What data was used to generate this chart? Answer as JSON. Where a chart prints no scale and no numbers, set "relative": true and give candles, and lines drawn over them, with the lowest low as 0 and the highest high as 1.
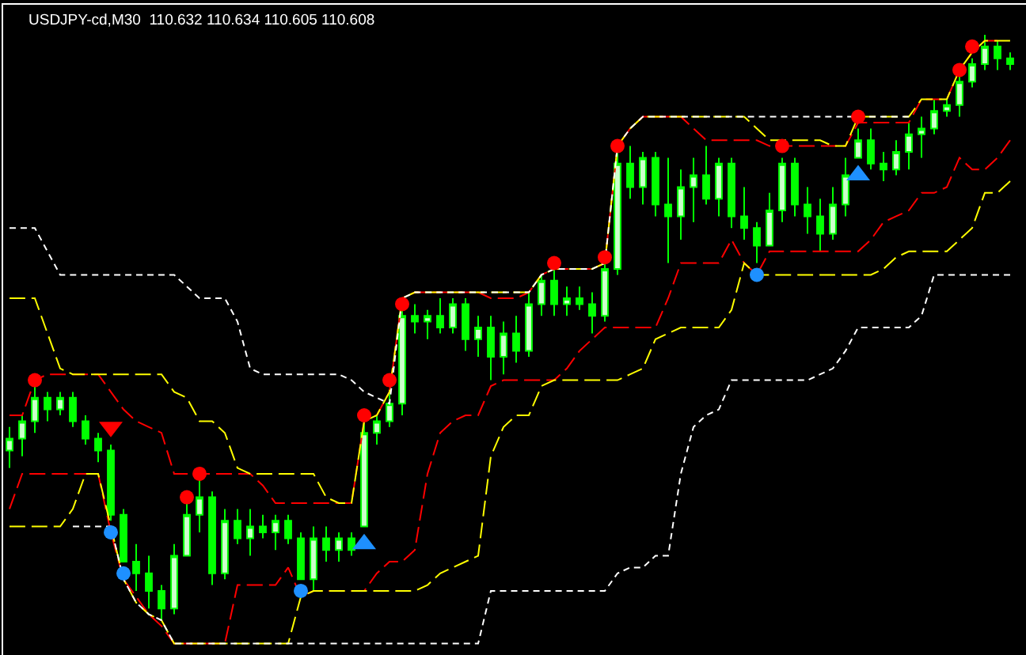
{
  "chart_data": {
    "type": "candlestick",
    "title": "USDJPY-cd,M30  110.632 110.634 110.605 110.608",
    "relative": true,
    "categories": [
      null,
      null,
      null,
      null,
      null,
      null,
      null,
      null,
      null,
      null,
      null,
      null,
      null,
      null,
      null,
      null,
      null,
      null,
      null,
      null,
      null,
      null,
      null,
      null,
      null,
      null,
      null,
      null,
      null,
      null,
      null,
      null,
      null,
      null,
      null,
      null,
      null,
      null,
      null,
      null,
      null,
      null,
      null,
      null,
      null,
      null,
      null,
      null,
      null,
      null,
      null,
      null,
      null,
      null,
      null,
      null,
      null,
      null,
      null,
      null,
      null,
      null,
      null,
      null,
      null,
      null,
      null,
      null,
      null,
      null,
      null,
      null,
      null,
      null,
      null,
      null,
      null,
      null,
      null,
      null
    ],
    "series": [
      {
        "type": "line",
        "color": "#ff0000",
        "line_style": "dashed",
        "values": [
          0.35,
          0.35,
          0.41,
          0.42,
          0.42,
          0.42,
          0.42,
          0.42,
          0.39,
          0.36,
          0.34,
          0.33,
          0.32,
          0.25,
          0.25,
          0.25,
          0.25,
          0.25,
          0.25,
          0.25,
          0.23,
          0.2,
          0.2,
          0.2,
          0.2,
          0.2,
          0.2,
          0.2,
          0.34,
          0.35,
          0.39,
          0.55,
          0.56,
          0.56,
          0.56,
          0.56,
          0.56,
          0.56,
          0.55,
          0.55,
          0.55,
          0.56,
          0.59,
          0.6,
          0.6,
          0.6,
          0.6,
          0.61,
          0.81,
          0.84,
          0.86,
          0.86,
          0.86,
          0.86,
          0.84,
          0.82,
          0.82,
          0.82,
          0.82,
          0.82,
          0.81,
          0.81,
          0.81,
          0.81,
          0.81,
          0.81,
          0.81,
          0.85,
          0.85,
          0.85,
          0.85,
          0.85,
          0.89,
          0.89,
          0.89,
          0.94,
          0.97,
          0.99,
          0.99,
          null
        ]
      },
      {
        "type": "line",
        "color": "#ff0000",
        "line_style": "dashed",
        "values": [
          0.19,
          0.25,
          0.25,
          0.25,
          0.25,
          0.25,
          0.25,
          0.25,
          0.15,
          0.07,
          0.04,
          0.01,
          -0.01,
          -0.04,
          -0.04,
          -0.04,
          -0.04,
          -0.04,
          0.06,
          0.06,
          0.06,
          0.06,
          0.09,
          0.04,
          0.05,
          0.05,
          0.05,
          0.05,
          0.05,
          0.08,
          0.1,
          0.1,
          0.12,
          0.25,
          0.32,
          0.34,
          0.35,
          0.35,
          0.4,
          0.41,
          0.41,
          0.41,
          0.41,
          0.41,
          0.43,
          0.46,
          0.48,
          0.5,
          0.5,
          0.5,
          0.5,
          0.5,
          0.55,
          0.61,
          0.61,
          0.61,
          0.61,
          0.65,
          0.61,
          0.59,
          0.63,
          0.63,
          0.63,
          0.63,
          0.63,
          0.63,
          0.63,
          0.63,
          0.65,
          0.68,
          0.69,
          0.7,
          0.73,
          0.73,
          0.74,
          0.79,
          0.77,
          0.77,
          0.79,
          0.82
        ]
      },
      {
        "type": "line",
        "color": "#ffff00",
        "line_style": "dashed",
        "values": [
          0.55,
          0.55,
          0.55,
          0.49,
          0.43,
          0.42,
          0.42,
          0.42,
          0.42,
          0.42,
          0.42,
          0.42,
          0.42,
          0.39,
          0.38,
          0.34,
          0.34,
          0.32,
          0.26,
          0.25,
          0.25,
          0.25,
          0.25,
          0.25,
          0.25,
          0.21,
          0.2,
          0.2,
          0.34,
          0.35,
          0.39,
          0.55,
          0.56,
          0.56,
          0.56,
          0.56,
          0.56,
          0.56,
          0.56,
          0.56,
          0.56,
          0.56,
          0.59,
          0.6,
          0.6,
          0.6,
          0.6,
          0.61,
          0.81,
          0.84,
          0.86,
          0.86,
          0.86,
          0.86,
          0.86,
          0.86,
          0.86,
          0.86,
          0.86,
          0.84,
          0.82,
          0.82,
          0.82,
          0.82,
          0.82,
          0.81,
          0.81,
          0.86,
          0.86,
          0.86,
          0.86,
          0.86,
          0.89,
          0.89,
          0.89,
          0.94,
          0.97,
          0.99,
          0.99,
          0.99
        ]
      },
      {
        "type": "line",
        "color": "#ffff00",
        "line_style": "dashed",
        "values": [
          0.16,
          0.16,
          0.16,
          0.16,
          0.16,
          0.19,
          0.25,
          0.25,
          0.16,
          0.07,
          0.03,
          0.01,
          0.0,
          -0.04,
          -0.04,
          -0.04,
          -0.04,
          -0.04,
          -0.04,
          -0.04,
          -0.04,
          -0.04,
          -0.04,
          0.04,
          0.05,
          0.05,
          0.05,
          0.05,
          0.05,
          0.05,
          0.05,
          0.05,
          0.05,
          0.06,
          0.08,
          0.09,
          0.1,
          0.11,
          0.28,
          0.33,
          0.35,
          0.35,
          0.4,
          0.41,
          0.41,
          0.41,
          0.41,
          0.41,
          0.41,
          0.42,
          0.43,
          0.48,
          0.49,
          0.5,
          0.5,
          0.5,
          0.5,
          0.53,
          0.61,
          0.59,
          0.59,
          0.59,
          0.59,
          0.59,
          0.59,
          0.59,
          0.59,
          0.59,
          0.59,
          0.6,
          0.62,
          0.63,
          0.63,
          0.63,
          0.63,
          0.65,
          0.67,
          0.73,
          0.73,
          0.75
        ]
      },
      {
        "type": "line",
        "color": "#ffffff",
        "line_style": "dotted",
        "values": [
          0.67,
          0.67,
          0.67,
          0.63,
          0.59,
          0.59,
          0.59,
          0.59,
          0.59,
          0.59,
          0.59,
          0.59,
          0.59,
          0.59,
          0.57,
          0.55,
          0.55,
          0.55,
          0.51,
          0.43,
          0.42,
          0.42,
          0.42,
          0.42,
          0.42,
          0.42,
          0.42,
          0.41,
          0.39,
          0.38,
          0.37,
          0.55,
          0.56,
          0.56,
          0.56,
          0.56,
          0.56,
          0.56,
          0.56,
          0.56,
          0.56,
          0.56,
          0.59,
          0.6,
          0.6,
          0.6,
          0.6,
          0.61,
          0.81,
          0.84,
          0.86,
          0.86,
          0.86,
          0.86,
          0.86,
          0.86,
          0.86,
          0.86,
          0.86,
          0.86,
          0.86,
          0.86,
          0.86,
          0.86,
          0.86,
          0.86,
          0.86,
          0.86,
          0.86,
          0.86,
          0.86,
          0.86,
          null,
          null,
          null,
          null,
          null,
          null,
          null,
          null
        ]
      },
      {
        "type": "line",
        "color": "#ffffff",
        "line_style": "dotted",
        "values": [
          null,
          null,
          null,
          null,
          null,
          0.16,
          0.16,
          0.16,
          0.16,
          0.07,
          0.03,
          0.01,
          0.0,
          -0.04,
          -0.04,
          -0.04,
          -0.04,
          -0.04,
          -0.04,
          -0.04,
          -0.04,
          -0.04,
          -0.04,
          -0.04,
          -0.04,
          -0.04,
          -0.04,
          -0.04,
          -0.04,
          -0.04,
          -0.04,
          -0.04,
          -0.04,
          -0.04,
          -0.04,
          -0.04,
          -0.04,
          -0.04,
          0.05,
          0.05,
          0.05,
          0.05,
          0.05,
          0.05,
          0.05,
          0.05,
          0.05,
          0.05,
          0.08,
          0.09,
          0.09,
          0.11,
          0.11,
          0.25,
          0.33,
          0.35,
          0.36,
          0.41,
          0.41,
          0.41,
          0.41,
          0.41,
          0.41,
          0.41,
          0.42,
          0.43,
          0.46,
          0.5,
          0.5,
          0.5,
          0.5,
          0.5,
          0.52,
          0.59,
          0.59,
          0.59,
          0.59,
          0.59,
          0.59,
          0.59
        ]
      },
      {
        "type": "scatter",
        "color": "#ff0000",
        "marker": "circle",
        "values": [
          null,
          null,
          0.41,
          null,
          null,
          null,
          null,
          null,
          null,
          null,
          null,
          null,
          null,
          null,
          0.21,
          0.25,
          null,
          null,
          null,
          null,
          null,
          null,
          null,
          null,
          null,
          null,
          null,
          null,
          0.35,
          null,
          0.41,
          0.54,
          null,
          null,
          null,
          null,
          null,
          null,
          null,
          null,
          null,
          null,
          null,
          0.61,
          null,
          null,
          null,
          0.62,
          0.81,
          null,
          null,
          null,
          null,
          null,
          null,
          null,
          null,
          null,
          null,
          null,
          null,
          0.81,
          null,
          null,
          null,
          null,
          null,
          0.86,
          null,
          null,
          null,
          null,
          null,
          null,
          null,
          0.94,
          0.98,
          null,
          null,
          null
        ]
      },
      {
        "type": "scatter",
        "color": "#1e90ff",
        "marker": "circle",
        "values": [
          null,
          null,
          null,
          null,
          null,
          null,
          null,
          null,
          0.15,
          0.08,
          null,
          null,
          null,
          null,
          null,
          null,
          null,
          null,
          null,
          null,
          null,
          null,
          null,
          0.05,
          null,
          null,
          null,
          null,
          null,
          null,
          null,
          null,
          null,
          null,
          null,
          null,
          null,
          null,
          null,
          null,
          null,
          null,
          null,
          null,
          null,
          null,
          null,
          null,
          null,
          null,
          null,
          null,
          null,
          null,
          null,
          null,
          null,
          null,
          null,
          0.59,
          null,
          null,
          null,
          null,
          null,
          null,
          null,
          null,
          null,
          null,
          null,
          null,
          null,
          null,
          null,
          null,
          null,
          null,
          null,
          null
        ]
      },
      {
        "type": "scatter",
        "color": "#ff0000",
        "marker": "triangle",
        "values": [
          null,
          null,
          null,
          null,
          null,
          null,
          null,
          null,
          0.33,
          null,
          null,
          null,
          null,
          null,
          null,
          null,
          null,
          null,
          null,
          null,
          null,
          null,
          null,
          null,
          null,
          null,
          null,
          null,
          null,
          null,
          null,
          null,
          null,
          null,
          null,
          null,
          null,
          null,
          null,
          null,
          null,
          null,
          null,
          null,
          null,
          null,
          null,
          null,
          null,
          null,
          null,
          null,
          null,
          null,
          null,
          null,
          null,
          null,
          null,
          null,
          null,
          null,
          null,
          null,
          null,
          null,
          null,
          null,
          null,
          null,
          null,
          null,
          null,
          null,
          null,
          null,
          null,
          null,
          null,
          null
        ]
      },
      {
        "type": "scatter",
        "color": "#1e90ff",
        "marker": "triangle",
        "values": [
          null,
          null,
          null,
          null,
          null,
          null,
          null,
          null,
          null,
          null,
          null,
          null,
          null,
          null,
          null,
          null,
          null,
          null,
          null,
          null,
          null,
          null,
          null,
          null,
          null,
          null,
          null,
          null,
          0.13,
          null,
          null,
          null,
          null,
          null,
          null,
          null,
          null,
          null,
          null,
          null,
          null,
          null,
          null,
          null,
          null,
          null,
          null,
          null,
          null,
          null,
          null,
          null,
          null,
          null,
          null,
          null,
          null,
          null,
          null,
          null,
          null,
          null,
          null,
          null,
          null,
          null,
          null,
          0.76,
          null,
          null,
          null,
          null,
          null,
          null,
          null,
          null,
          null,
          null,
          null,
          null
        ]
      },
      {
        "type": "candlestick",
        "color": "#00ff00",
        "ohlc": [
          [
            0.29,
            0.33,
            0.26,
            0.31
          ],
          [
            0.31,
            0.35,
            0.28,
            0.34
          ],
          [
            0.34,
            0.4,
            0.32,
            0.38
          ],
          [
            0.38,
            0.39,
            0.34,
            0.36
          ],
          [
            0.36,
            0.39,
            0.35,
            0.38
          ],
          [
            0.38,
            0.39,
            0.33,
            0.34
          ],
          [
            0.34,
            0.35,
            0.3,
            0.31
          ],
          [
            0.31,
            0.32,
            0.27,
            0.29
          ],
          [
            0.29,
            0.3,
            0.17,
            0.18
          ],
          [
            0.18,
            0.19,
            0.1,
            0.1
          ],
          [
            0.1,
            0.13,
            0.05,
            0.08
          ],
          [
            0.08,
            0.11,
            0.02,
            0.05
          ],
          [
            0.05,
            0.06,
            0.0,
            0.02
          ],
          [
            0.02,
            0.13,
            0.01,
            0.11
          ],
          [
            0.11,
            0.2,
            0.11,
            0.18
          ],
          [
            0.18,
            0.24,
            0.15,
            0.21
          ],
          [
            0.21,
            0.22,
            0.06,
            0.08
          ],
          [
            0.08,
            0.19,
            0.07,
            0.17
          ],
          [
            0.17,
            0.19,
            0.13,
            0.14
          ],
          [
            0.14,
            0.19,
            0.11,
            0.16
          ],
          [
            0.16,
            0.18,
            0.14,
            0.15
          ],
          [
            0.15,
            0.18,
            0.12,
            0.17
          ],
          [
            0.17,
            0.18,
            0.13,
            0.14
          ],
          [
            0.14,
            0.15,
            0.07,
            0.07
          ],
          [
            0.07,
            0.16,
            0.05,
            0.14
          ],
          [
            0.14,
            0.16,
            0.1,
            0.12
          ],
          [
            0.12,
            0.15,
            0.1,
            0.14
          ],
          [
            0.14,
            0.15,
            0.11,
            0.12
          ],
          [
            0.16,
            0.34,
            0.16,
            0.32
          ],
          [
            0.32,
            0.35,
            0.3,
            0.34
          ],
          [
            0.34,
            0.39,
            0.33,
            0.37
          ],
          [
            0.37,
            0.53,
            0.35,
            0.52
          ],
          [
            0.52,
            0.54,
            0.49,
            0.51
          ],
          [
            0.51,
            0.53,
            0.48,
            0.52
          ],
          [
            0.52,
            0.55,
            0.49,
            0.5
          ],
          [
            0.5,
            0.55,
            0.49,
            0.54
          ],
          [
            0.54,
            0.55,
            0.46,
            0.48
          ],
          [
            0.48,
            0.52,
            0.45,
            0.5
          ],
          [
            0.5,
            0.52,
            0.41,
            0.45
          ],
          [
            0.45,
            0.51,
            0.42,
            0.49
          ],
          [
            0.49,
            0.52,
            0.44,
            0.46
          ],
          [
            0.46,
            0.56,
            0.45,
            0.54
          ],
          [
            0.54,
            0.59,
            0.52,
            0.58
          ],
          [
            0.58,
            0.6,
            0.52,
            0.54
          ],
          [
            0.54,
            0.57,
            0.52,
            0.55
          ],
          [
            0.55,
            0.57,
            0.53,
            0.54
          ],
          [
            0.54,
            0.56,
            0.49,
            0.52
          ],
          [
            0.52,
            0.61,
            0.51,
            0.6
          ],
          [
            0.6,
            0.8,
            0.59,
            0.78
          ],
          [
            0.78,
            0.81,
            0.72,
            0.74
          ],
          [
            0.74,
            0.8,
            0.71,
            0.79
          ],
          [
            0.79,
            0.8,
            0.69,
            0.71
          ],
          [
            0.71,
            0.79,
            0.61,
            0.69
          ],
          [
            0.69,
            0.77,
            0.65,
            0.74
          ],
          [
            0.74,
            0.79,
            0.68,
            0.76
          ],
          [
            0.76,
            0.81,
            0.71,
            0.72
          ],
          [
            0.72,
            0.79,
            0.69,
            0.78
          ],
          [
            0.78,
            0.79,
            0.67,
            0.69
          ],
          [
            0.69,
            0.74,
            0.65,
            0.67
          ],
          [
            0.67,
            0.68,
            0.61,
            0.64
          ],
          [
            0.64,
            0.73,
            0.64,
            0.7
          ],
          [
            0.7,
            0.79,
            0.68,
            0.78
          ],
          [
            0.78,
            0.79,
            0.69,
            0.71
          ],
          [
            0.71,
            0.74,
            0.66,
            0.69
          ],
          [
            0.69,
            0.72,
            0.63,
            0.66
          ],
          [
            0.66,
            0.74,
            0.65,
            0.71
          ],
          [
            0.71,
            0.79,
            0.69,
            0.76
          ],
          [
            0.79,
            0.84,
            0.79,
            0.82
          ],
          [
            0.82,
            0.84,
            0.77,
            0.78
          ],
          [
            0.78,
            0.8,
            0.75,
            0.77
          ],
          [
            0.77,
            0.82,
            0.76,
            0.8
          ],
          [
            0.8,
            0.85,
            0.77,
            0.83
          ],
          [
            0.83,
            0.86,
            0.79,
            0.84
          ],
          [
            0.84,
            0.89,
            0.83,
            0.87
          ],
          [
            0.87,
            0.89,
            0.86,
            0.88
          ],
          [
            0.88,
            0.93,
            0.86,
            0.92
          ],
          [
            0.92,
            0.96,
            0.91,
            0.95
          ],
          [
            0.95,
            1.0,
            0.94,
            0.98
          ],
          [
            0.98,
            0.99,
            0.94,
            0.96
          ],
          [
            0.96,
            0.97,
            0.94,
            0.95
          ]
        ]
      }
    ]
  }
}
